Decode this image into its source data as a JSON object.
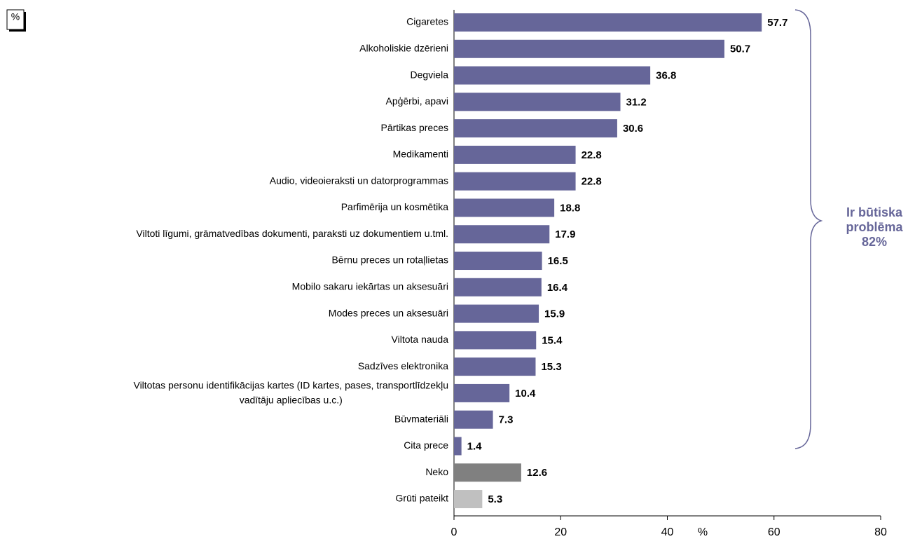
{
  "chart_data": {
    "type": "bar",
    "orientation": "horizontal",
    "unit_label": "%",
    "xlabel": "%",
    "annotation": "Ir būtiska\nproblēma\n82%",
    "annotation_color": "#666699",
    "categories": [
      "Cigaretes",
      "Alkoholiskie dzērieni",
      "Degviela",
      "Apģērbi, apavi",
      "Pārtikas preces",
      "Medikamenti",
      "Audio, videoieraksti un datorprogrammas",
      "Parfimērija un kosmētika",
      "Viltoti līgumi, grāmatvedības dokumenti, paraksti uz dokumentiem u.tml.",
      "Bērnu preces un rotaļlietas",
      "Mobilo sakaru iekārtas un aksesuāri",
      "Modes preces un aksesuāri",
      "Viltota nauda",
      "Sadzīves elektronika",
      "Viltotas personu identifikācijas kartes (ID kartes, pases, transportlīdzekļu\nvadītāju apliecības u.c.)",
      "Būvmateriāli",
      "Cita prece",
      "Neko",
      "Grūti pateikt"
    ],
    "values": [
      57.7,
      50.7,
      36.8,
      31.2,
      30.6,
      22.8,
      22.8,
      18.8,
      17.9,
      16.5,
      16.4,
      15.9,
      15.4,
      15.3,
      10.4,
      7.3,
      1.4,
      12.6,
      5.3
    ],
    "colors": [
      "#666699",
      "#666699",
      "#666699",
      "#666699",
      "#666699",
      "#666699",
      "#666699",
      "#666699",
      "#666699",
      "#666699",
      "#666699",
      "#666699",
      "#666699",
      "#666699",
      "#666699",
      "#666699",
      "#666699",
      "#808080",
      "#c0c0c0"
    ],
    "xlim": [
      0,
      80
    ],
    "xticks": [
      0,
      20,
      40,
      60,
      80
    ],
    "grid": false
  }
}
